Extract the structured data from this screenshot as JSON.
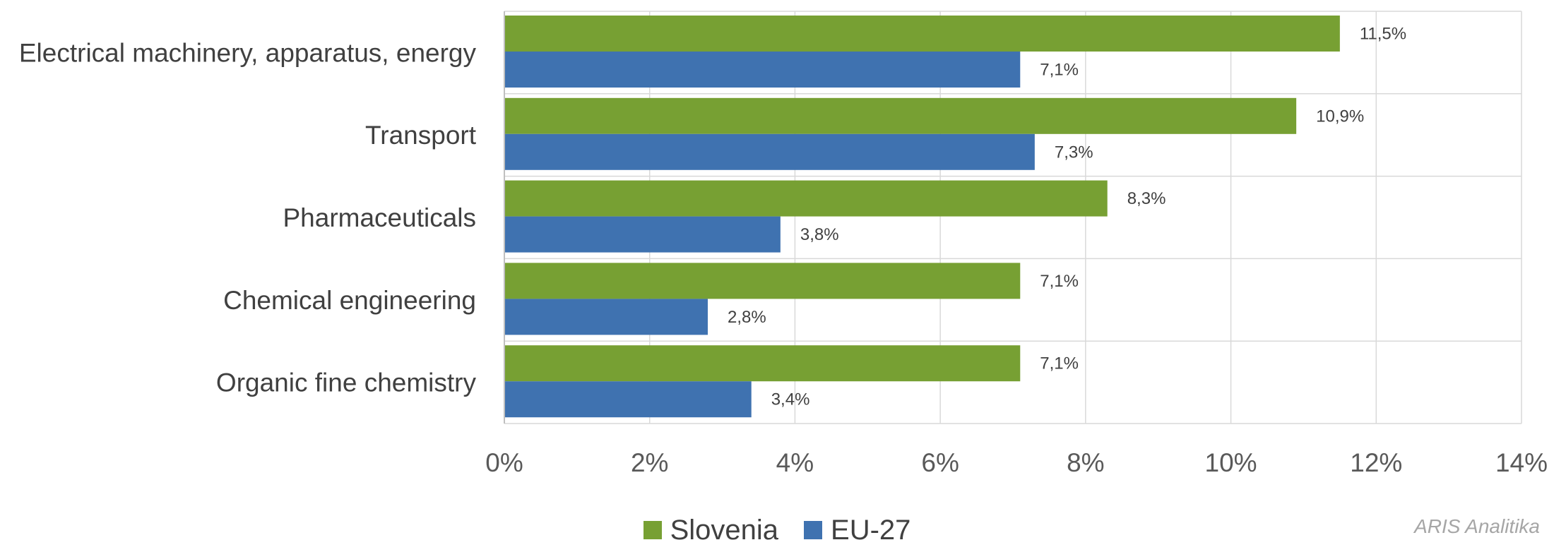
{
  "chart_data": {
    "type": "bar",
    "orientation": "horizontal",
    "categories": [
      "Electrical machinery, apparatus, energy",
      "Transport",
      "Pharmaceuticals",
      "Chemical engineering",
      "Organic fine chemistry"
    ],
    "series": [
      {
        "name": "Slovenia",
        "color": "#77a033",
        "values": [
          11.5,
          10.9,
          8.3,
          7.1,
          7.1
        ],
        "labels": [
          "11,5%",
          "10,9%",
          "8,3%",
          "7,1%",
          "7,1%"
        ]
      },
      {
        "name": "EU-27",
        "color": "#3f72b0",
        "values": [
          7.1,
          7.3,
          3.8,
          2.8,
          3.4
        ],
        "labels": [
          "7,1%",
          "7,3%",
          "3,8%",
          "2,8%",
          "3,4%"
        ]
      }
    ],
    "xlim": [
      0,
      14
    ],
    "x_ticks": [
      0,
      2,
      4,
      6,
      8,
      10,
      12,
      14
    ],
    "x_tick_labels": [
      "0%",
      "2%",
      "4%",
      "6%",
      "8%",
      "10%",
      "12%",
      "14%"
    ],
    "grid": true,
    "legend_position": "bottom"
  },
  "watermark": "ARIS Analitika"
}
